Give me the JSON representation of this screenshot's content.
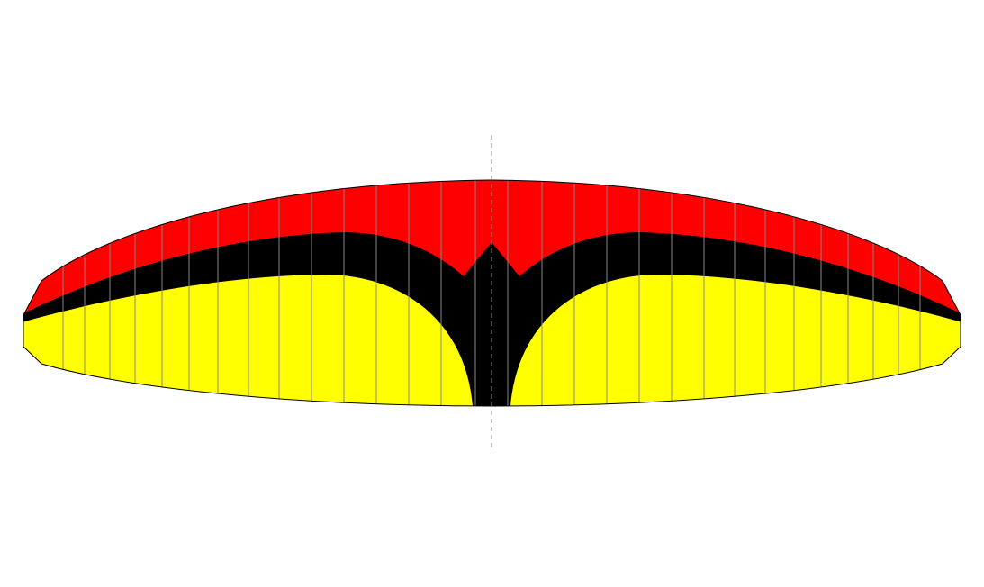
{
  "wing": {
    "colors": {
      "leading_edge": "#ff0000",
      "center_band": "#000000",
      "trailing_panel": "#ffff00",
      "rib_line": "#888888",
      "outline": "#000000",
      "centerline": "#888888"
    },
    "rib_count": 29,
    "centerline_style": "dashed",
    "symmetric": true
  }
}
